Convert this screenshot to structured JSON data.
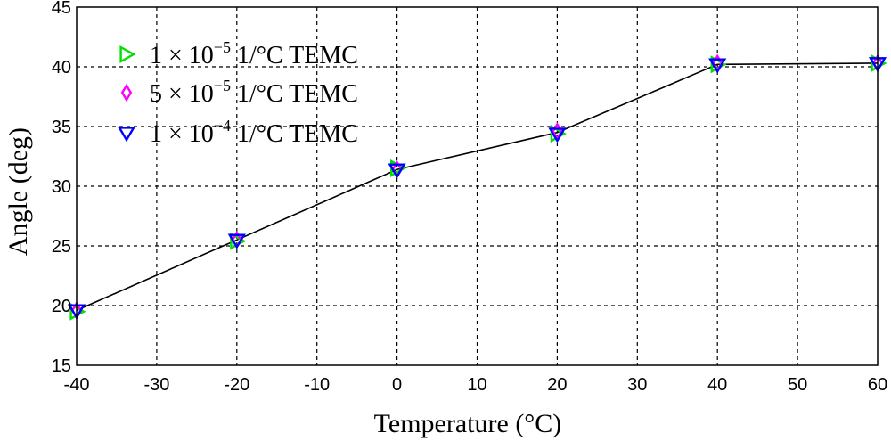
{
  "chart_data": {
    "type": "line",
    "title": "",
    "xlabel": "Temperature (°C)",
    "ylabel": "Angle (deg)",
    "xlim": [
      -40,
      60
    ],
    "ylim": [
      15,
      45
    ],
    "xticks": [
      -40,
      -30,
      -20,
      -10,
      0,
      10,
      20,
      30,
      40,
      50,
      60
    ],
    "yticks": [
      15,
      20,
      25,
      30,
      35,
      40,
      45
    ],
    "grid": true,
    "legend_position": "top-left",
    "x": [
      -40,
      -20,
      0,
      20,
      40,
      60
    ],
    "series": [
      {
        "name": "1 × 10⁻⁵ 1/°C TEMC",
        "legend": {
          "coef": "1",
          "mult": "×",
          "base": "10",
          "exp": "−5",
          "unit": "1/°C TEMC"
        },
        "marker": "triangle-right",
        "color": "#00e000",
        "values": [
          19.5,
          25.4,
          31.5,
          34.4,
          40.2,
          40.3
        ]
      },
      {
        "name": "5 × 10⁻⁵ 1/°C TEMC",
        "legend": {
          "coef": "5",
          "mult": "×",
          "base": "10",
          "exp": "−5",
          "unit": "1/°C TEMC"
        },
        "marker": "diamond",
        "color": "#ff00ff",
        "values": [
          19.6,
          25.5,
          31.4,
          34.6,
          40.3,
          40.3
        ]
      },
      {
        "name": "1 × 10⁻⁴ 1/°C TEMC",
        "legend": {
          "coef": "1",
          "mult": "×",
          "base": "10",
          "exp": "−4",
          "unit": "1/°C TEMC"
        },
        "marker": "triangle-down",
        "color": "#0000ff",
        "values": [
          19.6,
          25.5,
          31.4,
          34.4,
          40.2,
          40.3
        ]
      }
    ],
    "line": {
      "x": [
        -40,
        -20,
        0,
        20,
        40,
        60
      ],
      "values": [
        19.6,
        25.5,
        31.4,
        34.5,
        40.2,
        40.3
      ],
      "color": "#000000"
    }
  }
}
